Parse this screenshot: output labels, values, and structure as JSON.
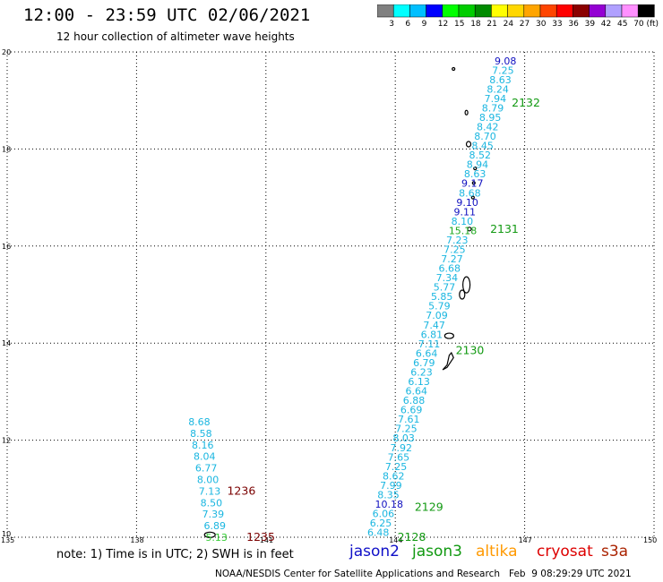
{
  "header": {
    "title": "12:00 - 23:59 UTC 02/06/2021",
    "subtitle": "12 hour collection of altimeter wave heights"
  },
  "colorbar": {
    "labels": [
      "3",
      "6",
      "9",
      "12",
      "15",
      "18",
      "21",
      "24",
      "27",
      "30",
      "33",
      "36",
      "39",
      "42",
      "45",
      "70 (ft)"
    ],
    "colors": [
      "#808080",
      "#00ffff",
      "#00bfff",
      "#0000ff",
      "#00ff00",
      "#00cd00",
      "#008b00",
      "#ffff00",
      "#ffd700",
      "#ffa500",
      "#ff4500",
      "#ff0000",
      "#8b0000",
      "#9400d3",
      "#b0a0ff",
      "#ff90ff",
      "#000000"
    ]
  },
  "axes": {
    "lon_labels": [
      "135",
      "138",
      "141",
      "144",
      "147",
      "150"
    ],
    "lat_labels": [
      "10",
      "12",
      "14",
      "16",
      "18",
      "20"
    ],
    "lon_range": [
      135,
      150
    ],
    "lat_range": [
      10,
      20
    ],
    "grid": "dotted"
  },
  "tracks": [
    {
      "satellite": "jason3",
      "color": "#1ab6e0",
      "values": [
        "6.48",
        "6.25",
        "6.06",
        "10.18",
        "8.35",
        "7.99",
        "8.62",
        "7.25",
        "7.65",
        "7.92",
        "8.03",
        "7.25",
        "7.61",
        "6.69",
        "6.88",
        "6.64",
        "6.13",
        "6.23",
        "6.79",
        "6.64",
        "7.11",
        "6.81",
        "7.47",
        "7.09",
        "5.79",
        "5.85",
        "5.77",
        "7.34",
        "6.68",
        "7.27",
        "7.25",
        "7.23",
        "15.18",
        "8.10",
        "9.11",
        "9.10",
        "8.68",
        "9.17",
        "8.63",
        "8.94",
        "8.52",
        "8.45",
        "8.70",
        "8.42",
        "8.95",
        "8.79",
        "7.94",
        "8.24",
        "8.63",
        "7.25",
        "9.08"
      ],
      "value_colors": {
        "3": "#1010c0",
        "32": "#1ca81c",
        "34": "#1010c0",
        "35": "#1010c0",
        "37": "#1010c0",
        "50": "#1010c0"
      },
      "lat_start": 10.1,
      "lat_end": 19.82,
      "lon_start": 143.6,
      "lon_end": 146.55
    },
    {
      "satellite": "jason3",
      "color": "#1ab6e0",
      "values": [
        "5.13",
        "6.89",
        "7.39",
        "8.50",
        "7.13",
        "8.00",
        "6.77",
        "8.04",
        "8.16",
        "8.58",
        "8.68"
      ],
      "value_colors": {
        "0": "#33cc33"
      },
      "lat_start": 10.0,
      "lat_end": 12.38,
      "lon_start": 139.85,
      "lon_end": 139.45
    }
  ],
  "pass_labels": [
    {
      "text": "2132",
      "color": "#119911",
      "lon": 146.7,
      "lat": 18.95
    },
    {
      "text": "2131",
      "color": "#119911",
      "lon": 146.2,
      "lat": 16.35
    },
    {
      "text": "2130",
      "color": "#119911",
      "lon": 145.4,
      "lat": 13.85
    },
    {
      "text": "2129",
      "color": "#119911",
      "lon": 144.45,
      "lat": 10.62
    },
    {
      "text": "2128",
      "color": "#119911",
      "lon": 144.05,
      "lat": 10.0
    },
    {
      "text": "1236",
      "color": "#7a0000",
      "lon": 140.1,
      "lat": 10.95
    },
    {
      "text": "1235",
      "color": "#7a0000",
      "lon": 140.55,
      "lat": 10.0
    }
  ],
  "footer": {
    "note": "note: 1) Time is in UTC; 2) SWH is in feet",
    "legend": [
      {
        "label": "jason2",
        "color": "#1010c8"
      },
      {
        "label": "jason3",
        "color": "#119911"
      },
      {
        "label": "altika",
        "color": "#ff9900"
      },
      {
        "label": "cryosat",
        "color": "#dd0000"
      },
      {
        "label": "s3a",
        "color": "#aa2200"
      }
    ],
    "credit": "NOAA/NESDIS Center for Satellite Applications and Research   Feb  9 08:29:29 UTC 2021"
  }
}
